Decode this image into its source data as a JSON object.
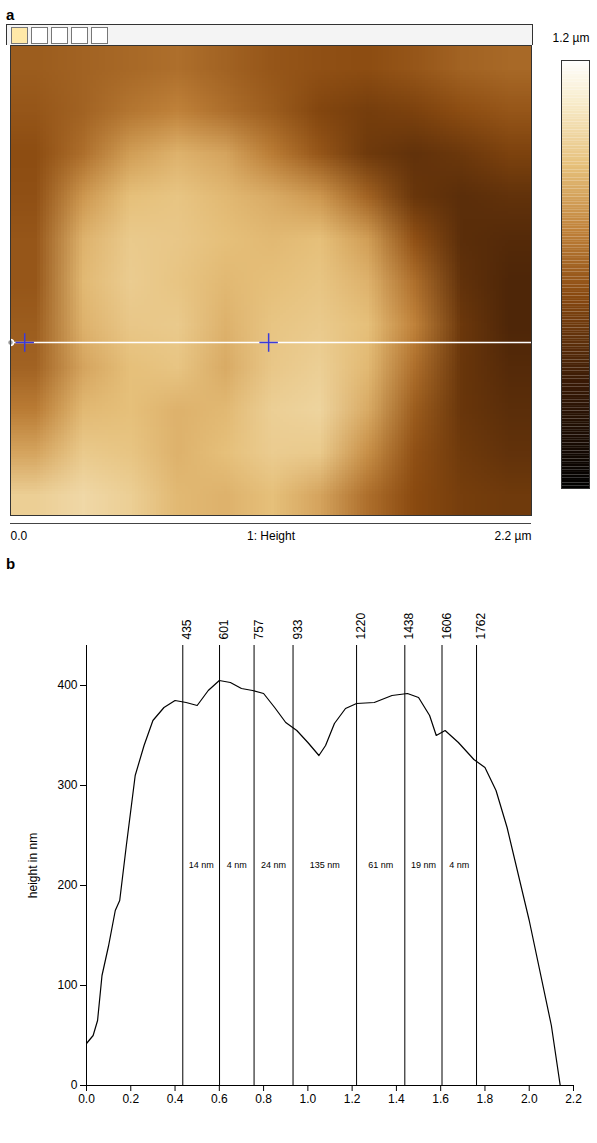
{
  "chart_data": [
    {
      "type": "heatmap",
      "panel": "a",
      "x_label": "1: Height",
      "xlim": [
        0,
        2.2
      ],
      "ylim": [
        0,
        2.2
      ],
      "xticks": [
        {
          "value": 0,
          "label": "0.0"
        },
        {
          "value": 2.2,
          "label": "2.2 µm"
        }
      ],
      "tick_labels": "x",
      "z": [
        [
          0.6,
          0.62,
          0.64,
          0.66,
          0.62,
          0.58,
          0.56,
          0.55,
          0.58,
          0.62,
          0.64
        ],
        [
          0.58,
          0.62,
          0.68,
          0.72,
          0.66,
          0.6,
          0.52,
          0.48,
          0.5,
          0.55,
          0.58
        ],
        [
          0.55,
          0.66,
          0.8,
          0.86,
          0.82,
          0.7,
          0.58,
          0.46,
          0.42,
          0.45,
          0.5
        ],
        [
          0.56,
          0.78,
          0.9,
          0.92,
          0.88,
          0.84,
          0.78,
          0.62,
          0.44,
          0.4,
          0.42
        ],
        [
          0.58,
          0.86,
          0.94,
          0.93,
          0.9,
          0.88,
          0.9,
          0.8,
          0.56,
          0.4,
          0.38
        ],
        [
          0.58,
          0.88,
          0.95,
          0.92,
          0.88,
          0.9,
          0.92,
          0.86,
          0.66,
          0.42,
          0.36
        ],
        [
          0.6,
          0.86,
          0.93,
          0.94,
          0.86,
          0.92,
          0.94,
          0.9,
          0.72,
          0.45,
          0.36
        ],
        [
          0.62,
          0.82,
          0.9,
          0.92,
          0.84,
          0.93,
          0.96,
          0.88,
          0.66,
          0.44,
          0.38
        ],
        [
          0.7,
          0.88,
          0.9,
          0.86,
          0.88,
          0.96,
          0.98,
          0.84,
          0.6,
          0.44,
          0.4
        ],
        [
          0.82,
          0.94,
          0.92,
          0.86,
          0.9,
          0.95,
          0.94,
          0.76,
          0.56,
          0.46,
          0.42
        ],
        [
          0.96,
          1.0,
          0.96,
          0.88,
          0.86,
          0.9,
          0.82,
          0.66,
          0.54,
          0.48,
          0.46
        ]
      ],
      "colorbar": {
        "range": [
          0,
          1.2
        ],
        "ticks": [
          {
            "value": 1.2,
            "label": "1.2 µm"
          }
        ]
      },
      "profile_y": 1.39,
      "markers_x": [
        0.06,
        1.09
      ]
    },
    {
      "type": "line",
      "panel": "b",
      "y_label": "height in nm",
      "color": "#000000",
      "x": [
        0,
        0.03,
        0.05,
        0.07,
        0.1,
        0.13,
        0.15,
        0.18,
        0.22,
        0.26,
        0.3,
        0.35,
        0.4,
        0.45,
        0.5,
        0.55,
        0.6,
        0.65,
        0.7,
        0.75,
        0.8,
        0.85,
        0.9,
        0.95,
        1.0,
        1.05,
        1.08,
        1.12,
        1.17,
        1.22,
        1.3,
        1.38,
        1.45,
        1.5,
        1.55,
        1.58,
        1.62,
        1.68,
        1.75,
        1.8,
        1.85,
        1.9,
        2.0,
        2.1,
        2.14
      ],
      "values": [
        42,
        50,
        65,
        110,
        140,
        175,
        185,
        240,
        310,
        340,
        365,
        378,
        385,
        383,
        380,
        395,
        405,
        403,
        397,
        395,
        392,
        378,
        363,
        355,
        343,
        330,
        340,
        362,
        377,
        382,
        383,
        390,
        392,
        388,
        370,
        350,
        355,
        343,
        326,
        318,
        295,
        258,
        165,
        60,
        0
      ],
      "xlim": [
        0,
        2.2
      ],
      "xticks": [
        {
          "value": 0,
          "label": "0.0"
        },
        {
          "value": 0.2,
          "label": "0.2"
        },
        {
          "value": 0.4,
          "label": "0.4"
        },
        {
          "value": 0.6,
          "label": "0.6"
        },
        {
          "value": 0.8,
          "label": "0.8"
        },
        {
          "value": 1,
          "label": "1.0"
        },
        {
          "value": 1.2,
          "label": "1.2"
        },
        {
          "value": 1.4,
          "label": "1.4"
        },
        {
          "value": 1.6,
          "label": "1.6"
        },
        {
          "value": 1.8,
          "label": "1.8"
        },
        {
          "value": 2,
          "label": "2.0"
        },
        {
          "value": 2.2,
          "label": "2.2"
        }
      ],
      "ylim": [
        0,
        440
      ],
      "yticks": [
        0,
        100,
        200,
        300,
        400
      ],
      "markers": [
        {
          "value": 0.435,
          "label": "435"
        },
        {
          "value": 0.601,
          "label": "601"
        },
        {
          "value": 0.757,
          "label": "757"
        },
        {
          "value": 0.933,
          "label": "933"
        },
        {
          "value": 1.22,
          "label": "1220"
        },
        {
          "value": 1.438,
          "label": "1438"
        },
        {
          "value": 1.606,
          "label": "1606"
        },
        {
          "value": 1.762,
          "label": "1762"
        }
      ],
      "annotations": [
        "14 nm",
        "4 nm",
        "24 nm",
        "135 nm",
        "61 nm",
        "19 nm",
        "4 nm"
      ]
    }
  ]
}
